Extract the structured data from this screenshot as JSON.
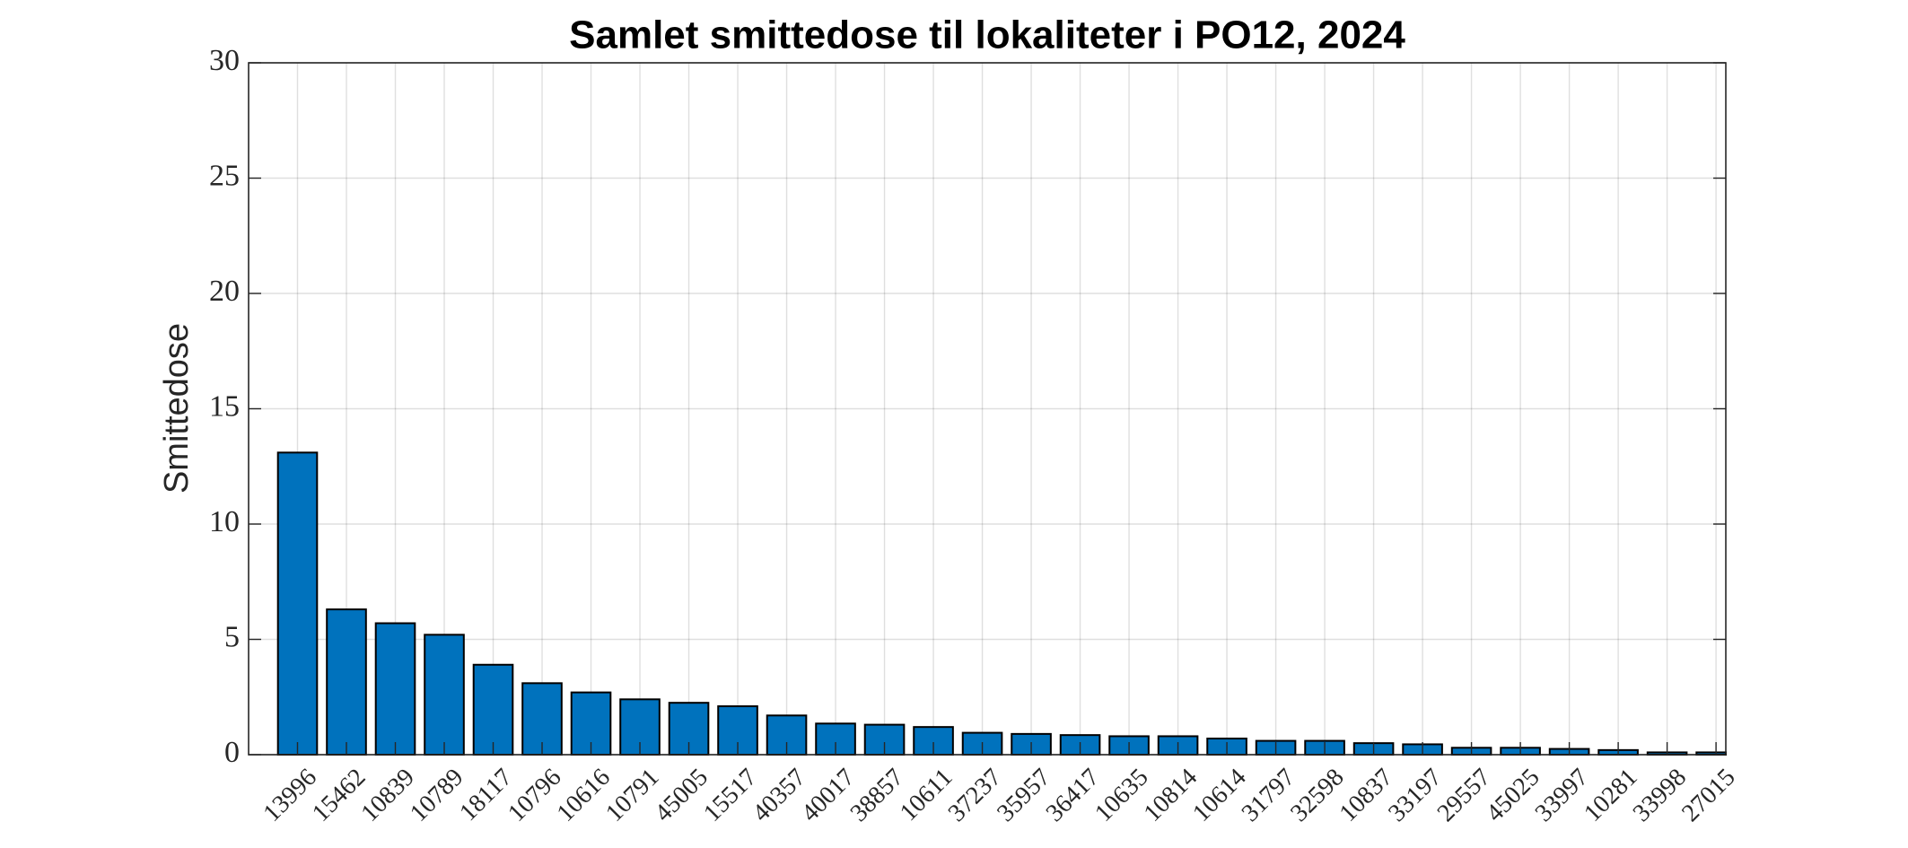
{
  "chart_data": {
    "type": "bar",
    "title": "Samlet smittedose til lokaliteter i PO12, 2024",
    "y_label": "Smittedose",
    "categories": [
      "13996",
      "15462",
      "10839",
      "10789",
      "18117",
      "10796",
      "10616",
      "10791",
      "45005",
      "15517",
      "40357",
      "40017",
      "38857",
      "10611",
      "37237",
      "35957",
      "36417",
      "10635",
      "10814",
      "10614",
      "31797",
      "32598",
      "10837",
      "33197",
      "29557",
      "45025",
      "33997",
      "10281",
      "33998",
      "27015"
    ],
    "values": [
      13.1,
      6.3,
      5.7,
      5.2,
      3.9,
      3.1,
      2.7,
      2.4,
      2.25,
      2.1,
      1.7,
      1.35,
      1.3,
      1.2,
      0.95,
      0.9,
      0.85,
      0.8,
      0.8,
      0.7,
      0.6,
      0.6,
      0.5,
      0.45,
      0.3,
      0.3,
      0.25,
      0.2,
      0.1,
      0.1
    ],
    "color": "#0072bd",
    "ylim": [
      0,
      30
    ],
    "yticks": [
      0,
      5,
      10,
      15,
      20,
      25,
      30
    ],
    "grid": true
  }
}
